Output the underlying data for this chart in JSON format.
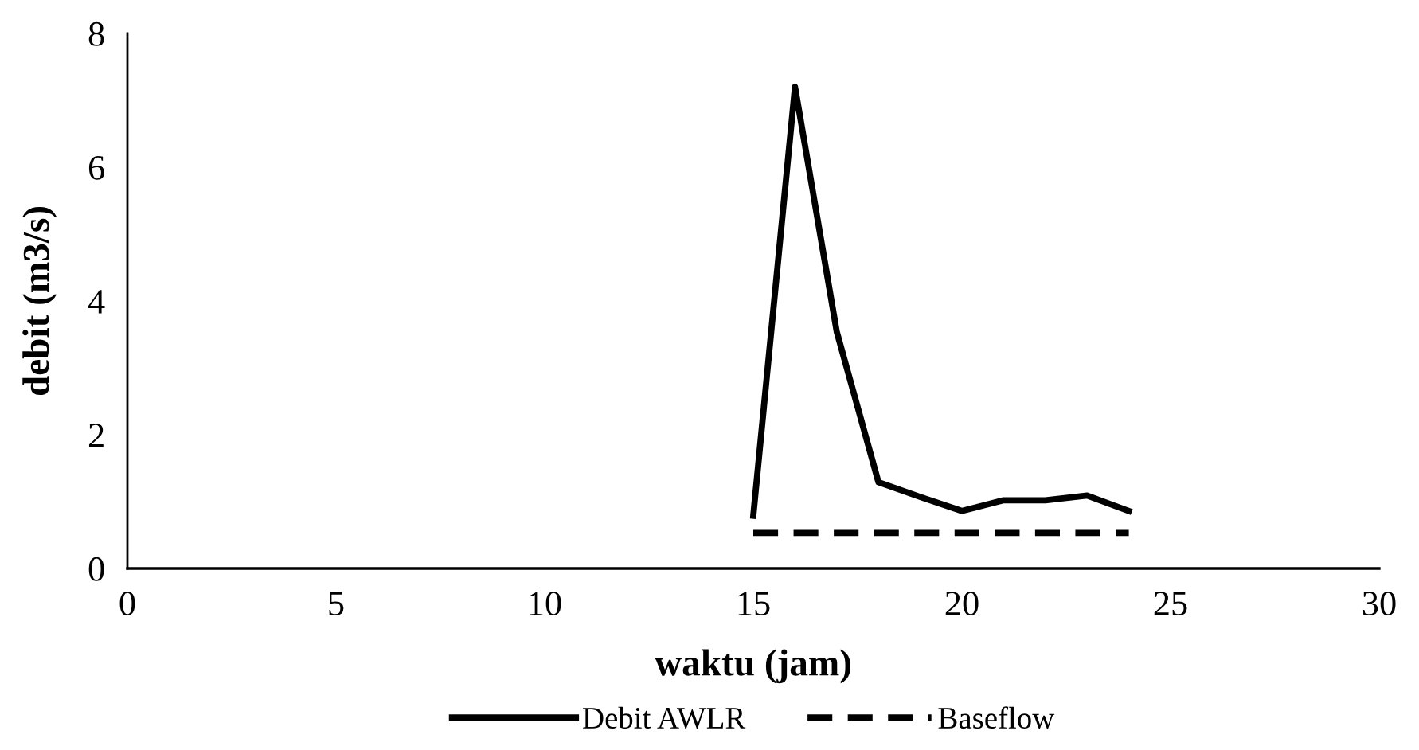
{
  "chart_data": {
    "type": "line",
    "xlabel": "waktu (jam)",
    "ylabel": "debit (m3/s)",
    "x": [
      15,
      16,
      17,
      18,
      19,
      20,
      21,
      22,
      23,
      24
    ],
    "series": [
      {
        "name": "Debit AWLR",
        "color": "#000000",
        "line_style": "solid",
        "values": [
          0.79,
          7.2,
          3.54,
          1.29,
          1.07,
          0.86,
          1.02,
          1.02,
          1.09,
          0.86
        ]
      },
      {
        "name": "Baseflow",
        "color": "#000000",
        "line_style": "dashed",
        "values": [
          0.53,
          0.53,
          0.53,
          0.53,
          0.53,
          0.53,
          0.53,
          0.53,
          0.53,
          0.53
        ]
      }
    ],
    "xlim": [
      0,
      30
    ],
    "xticks": [
      0,
      5,
      10,
      15,
      20,
      25,
      30
    ],
    "ylim": [
      0,
      8
    ],
    "yticks": [
      0,
      2,
      4,
      6,
      8
    ],
    "grid": false,
    "legend": "bottom",
    "marker": "none"
  }
}
